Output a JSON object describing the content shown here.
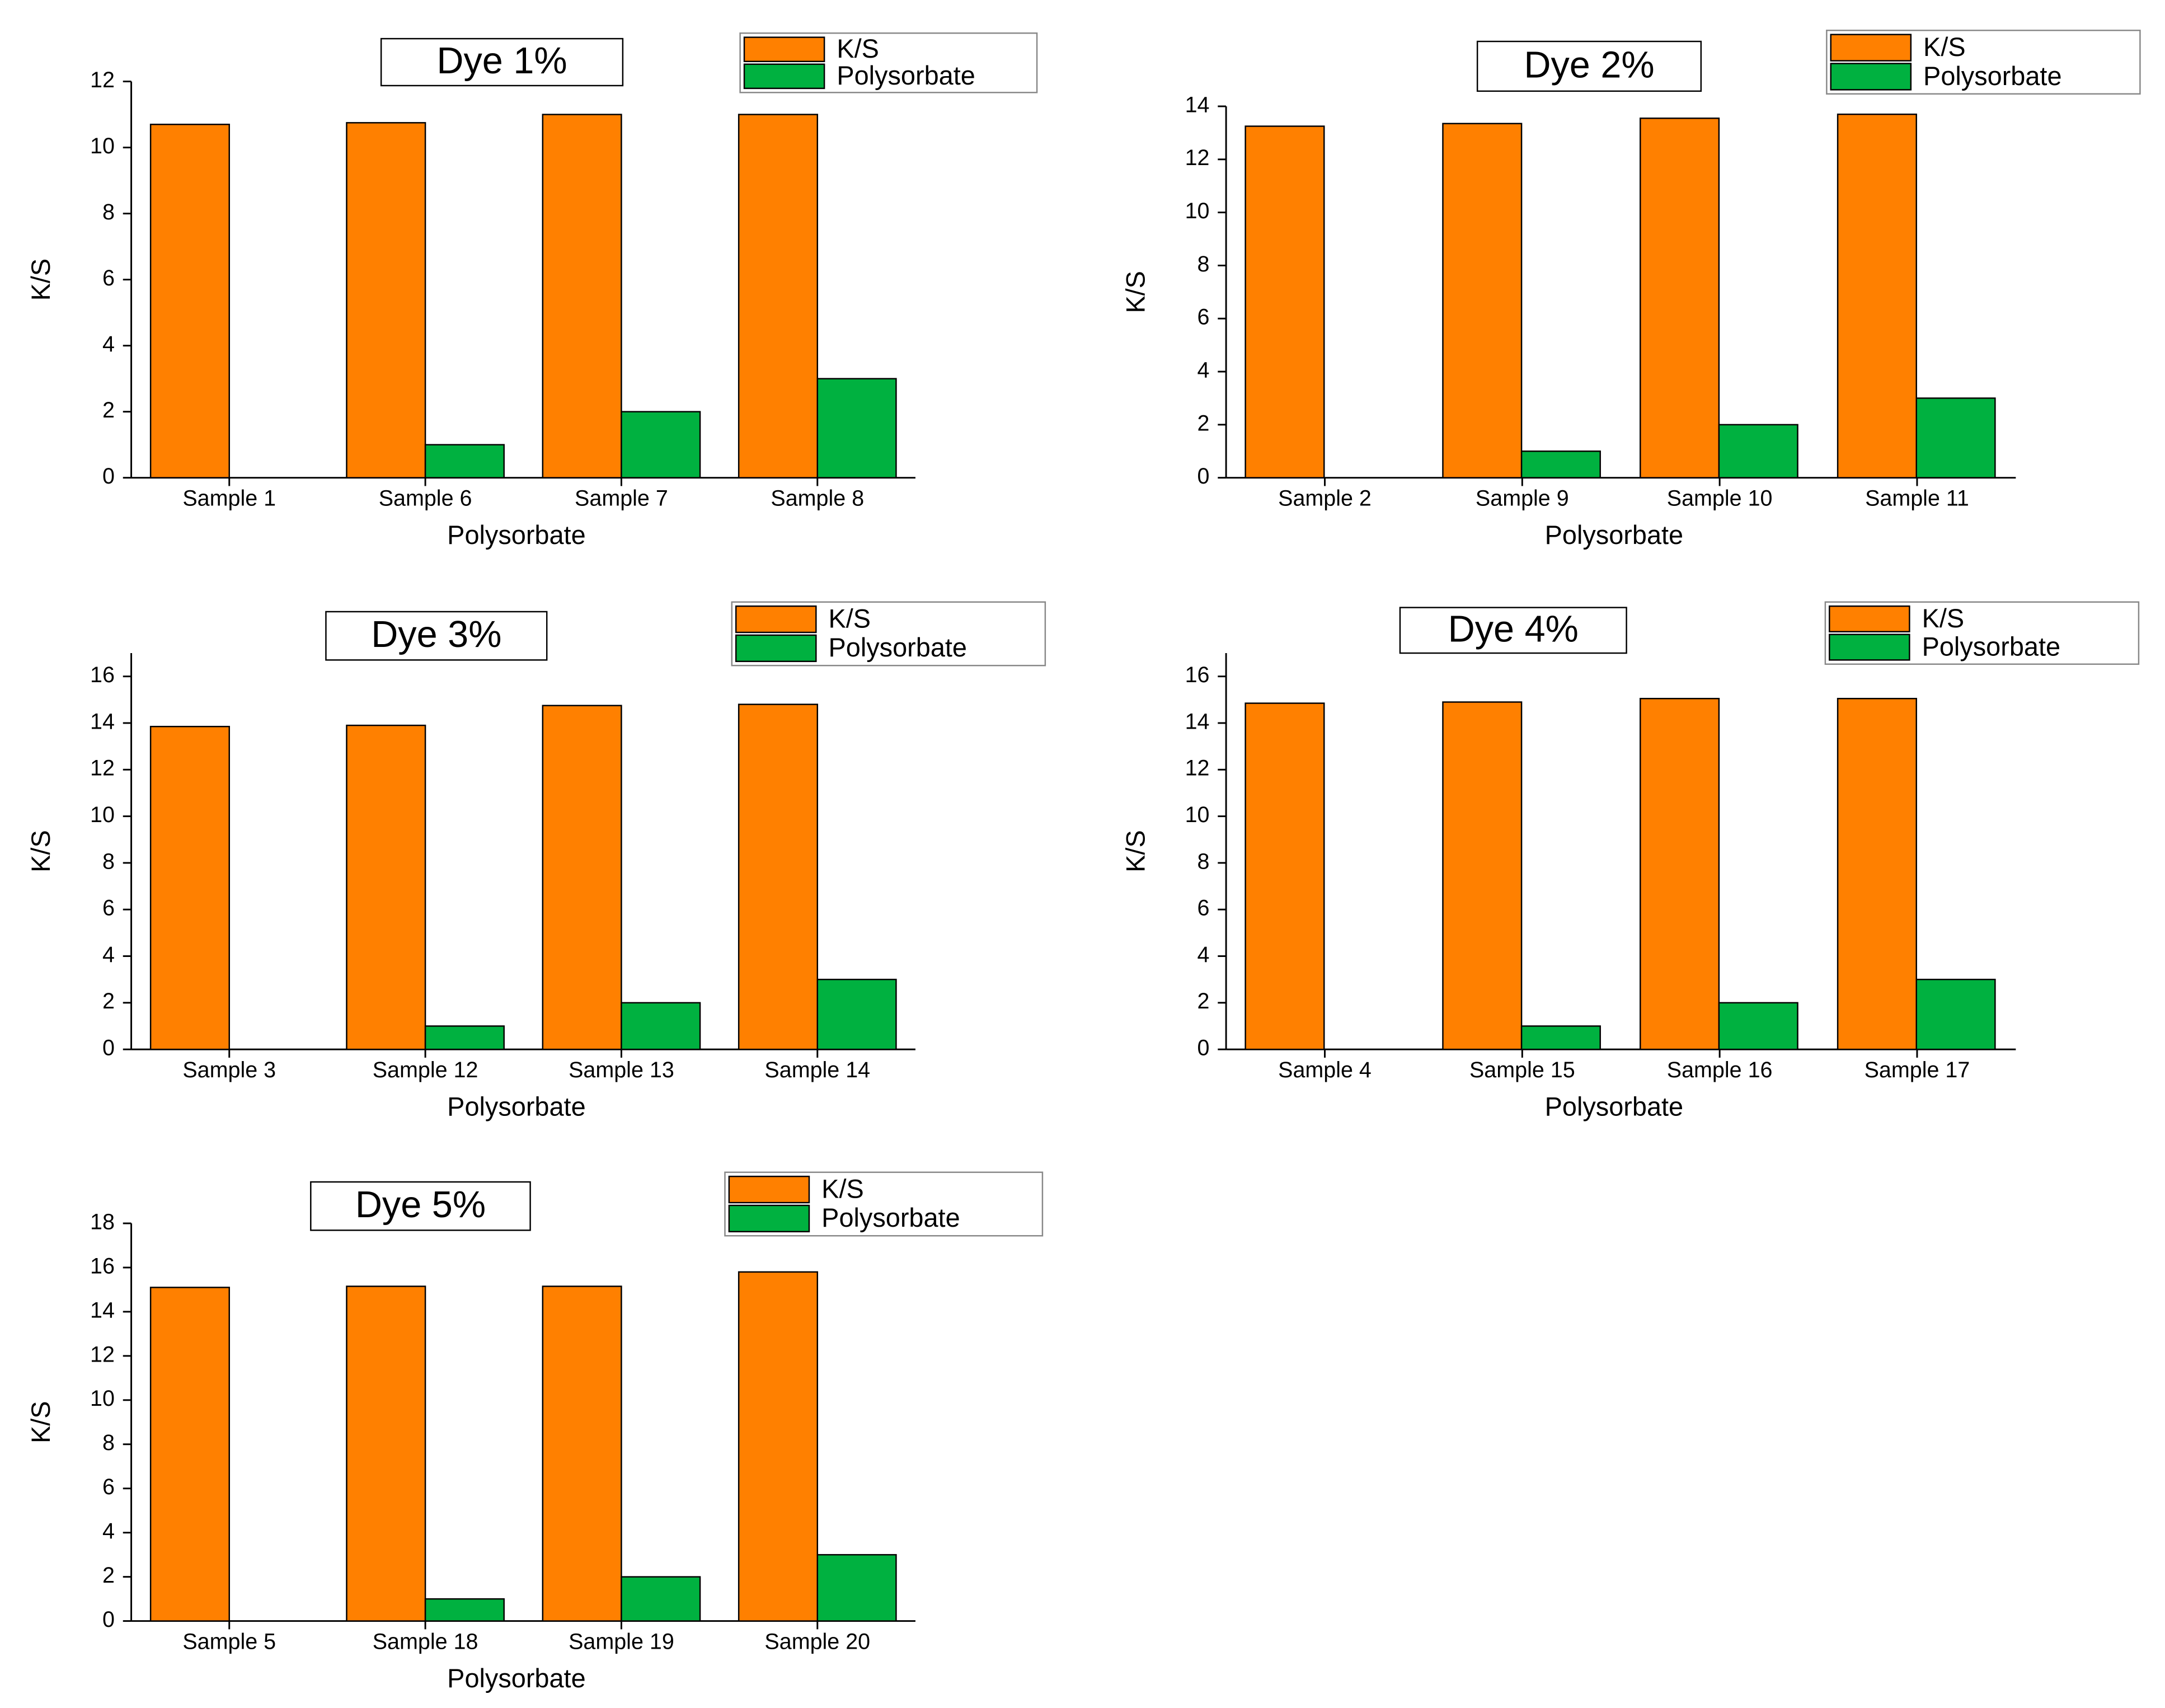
{
  "chart_data": [
    {
      "type": "bar",
      "title": "Dye 1%",
      "x_label": "Polysorbate",
      "y_label": "K/S",
      "categories": [
        "Sample 1",
        "Sample 6",
        "Sample 7",
        "Sample 8"
      ],
      "series": [
        {
          "name": "K/S",
          "color": "#ff8000",
          "values": [
            10.7,
            10.75,
            11.0,
            11.0
          ]
        },
        {
          "name": "Polysorbate",
          "color": "#00b140",
          "values": [
            0,
            1,
            2,
            3
          ]
        }
      ],
      "ylim": [
        0,
        12
      ],
      "yticks": [
        0,
        2,
        4,
        6,
        8,
        10,
        12
      ]
    },
    {
      "type": "bar",
      "title": "Dye 2%",
      "x_label": "Polysorbate",
      "y_label": "K/S",
      "categories": [
        "Sample 2",
        "Sample 9",
        "Sample 10",
        "Sample 11"
      ],
      "series": [
        {
          "name": "K/S",
          "color": "#ff8000",
          "values": [
            13.25,
            13.35,
            13.55,
            13.7
          ]
        },
        {
          "name": "Polysorbate",
          "color": "#00b140",
          "values": [
            0,
            1,
            2,
            3
          ]
        }
      ],
      "ylim": [
        0,
        14
      ],
      "yticks": [
        0,
        2,
        4,
        6,
        8,
        10,
        12,
        14
      ]
    },
    {
      "type": "bar",
      "title": "Dye 3%",
      "x_label": "Polysorbate",
      "y_label": "K/S",
      "categories": [
        "Sample 3",
        "Sample 12",
        "Sample 13",
        "Sample 14"
      ],
      "series": [
        {
          "name": "K/S",
          "color": "#ff8000",
          "values": [
            13.85,
            13.9,
            14.75,
            14.8
          ]
        },
        {
          "name": "Polysorbate",
          "color": "#00b140",
          "values": [
            0,
            1,
            2,
            3
          ]
        }
      ],
      "ylim": [
        0,
        17
      ],
      "yticks": [
        0,
        2,
        4,
        6,
        8,
        10,
        12,
        14,
        16
      ]
    },
    {
      "type": "bar",
      "title": "Dye 4%",
      "x_label": "Polysorbate",
      "y_label": "K/S",
      "categories": [
        "Sample 4",
        "Sample 15",
        "Sample 16",
        "Sample 17"
      ],
      "series": [
        {
          "name": "K/S",
          "color": "#ff8000",
          "values": [
            14.85,
            14.9,
            15.05,
            15.05
          ]
        },
        {
          "name": "Polysorbate",
          "color": "#00b140",
          "values": [
            0,
            1,
            2,
            3
          ]
        }
      ],
      "ylim": [
        0,
        17
      ],
      "yticks": [
        0,
        2,
        4,
        6,
        8,
        10,
        12,
        14,
        16
      ]
    },
    {
      "type": "bar",
      "title": "Dye 5%",
      "x_label": "Polysorbate",
      "y_label": "K/S",
      "categories": [
        "Sample 5",
        "Sample 18",
        "Sample 19",
        "Sample 20"
      ],
      "series": [
        {
          "name": "K/S",
          "color": "#ff8000",
          "values": [
            15.1,
            15.15,
            15.15,
            15.8
          ]
        },
        {
          "name": "Polysorbate",
          "color": "#00b140",
          "values": [
            0,
            1,
            2,
            3
          ]
        }
      ],
      "ylim": [
        0,
        18
      ],
      "yticks": [
        0,
        2,
        4,
        6,
        8,
        10,
        12,
        14,
        16,
        18
      ]
    }
  ]
}
